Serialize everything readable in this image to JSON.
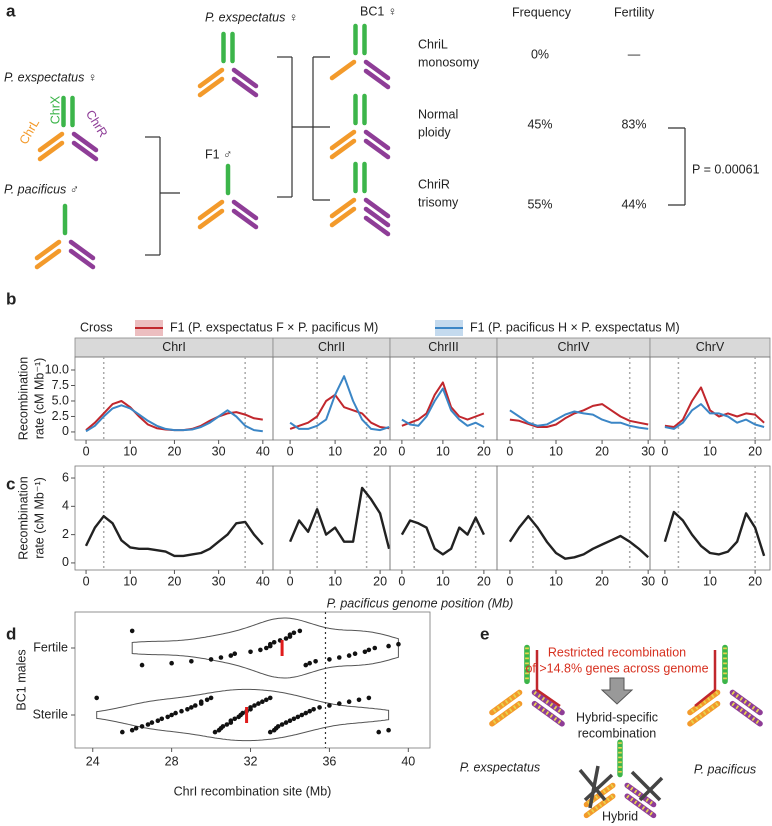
{
  "panel_labels": [
    "a",
    "b",
    "c",
    "d",
    "e"
  ],
  "panel_a": {
    "parent_female": "P. exspectatus ♀",
    "chromosome_labels": [
      "ChrX",
      "ChrL",
      "ChrR"
    ],
    "parent_male": "P. pacificus ♂",
    "backcross_female": "P. exspectatus ♀",
    "f1": "F1 ♂",
    "bc1": "BC1 ♀",
    "column_headers": [
      "Frequency",
      "Fertility"
    ],
    "rows": [
      {
        "karyotype": [
          "ChriL",
          "monosomy"
        ],
        "frequency": "0%",
        "fertility": "—"
      },
      {
        "karyotype": [
          "Normal",
          "ploidy"
        ],
        "frequency": "45%",
        "fertility": "83%"
      },
      {
        "karyotype": [
          "ChriR",
          "trisomy"
        ],
        "frequency": "55%",
        "fertility": "44%"
      }
    ],
    "p_value": "P = 0.00061"
  },
  "chart_data": [
    {
      "type": "line",
      "legend_title": "Cross",
      "series": [
        {
          "name": "F1 (P. exspectatus F × P. pacificus M)",
          "color": "#c1272d"
        },
        {
          "name": "F1 (P. pacificus H × P. exspectatus M)",
          "color": "#3b86c6"
        }
      ],
      "y_label": [
        "Recombination",
        "rate (cM Mb⁻¹)"
      ],
      "ylim": [
        -1.3,
        12.1
      ],
      "yticks": [
        0,
        2.5,
        {
          "value": 5,
          "label": "5.0"
        },
        7.5,
        {
          "value": 10,
          "label": "10.0"
        }
      ],
      "facets": [
        {
          "title": "ChrI",
          "xlim": [
            -2.5,
            42.3
          ],
          "xticks": [
            0,
            10,
            20,
            30,
            40
          ],
          "dotted": [
            4,
            36
          ],
          "x": [
            0,
            2,
            4,
            6,
            8,
            10,
            12,
            14,
            16,
            18,
            20,
            22,
            24,
            26,
            28,
            30,
            32,
            34,
            36,
            38,
            40
          ],
          "series": [
            {
              "values": [
                0.3,
                1.5,
                3,
                4.5,
                5,
                4,
                2.5,
                1.2,
                0.6,
                0.4,
                0.3,
                0.3,
                0.5,
                1,
                1.8,
                2.5,
                3,
                3.2,
                2.8,
                2.2,
                2
              ]
            },
            {
              "values": [
                0.1,
                1,
                2.5,
                3.8,
                4.3,
                3.8,
                2.8,
                1.8,
                1,
                0.5,
                0.3,
                0.3,
                0.4,
                0.8,
                1.5,
                2.5,
                3.5,
                2.5,
                1,
                0.3,
                0.1
              ]
            }
          ]
        },
        {
          "title": "ChrII",
          "xlim": [
            -3.8,
            22.2
          ],
          "xticks": [
            0,
            10,
            20
          ],
          "dotted": [
            6,
            17
          ],
          "x": [
            0,
            2,
            4,
            6,
            8,
            10,
            12,
            14,
            16,
            18,
            20,
            22
          ],
          "series": [
            {
              "values": [
                0.5,
                1,
                1.5,
                2.5,
                5,
                6,
                4,
                3.5,
                3,
                1.5,
                0.8,
                0.6
              ]
            },
            {
              "values": [
                1.5,
                0.5,
                0.5,
                1,
                2,
                6,
                9,
                5,
                2,
                0.5,
                0.3,
                0.8
              ]
            }
          ]
        },
        {
          "title": "ChrIII",
          "xlim": [
            -2.9,
            23.2
          ],
          "xticks": [
            0,
            10,
            20
          ],
          "dotted": [
            3,
            18
          ],
          "x": [
            0,
            2,
            4,
            6,
            8,
            10,
            12,
            14,
            16,
            18,
            20
          ],
          "series": [
            {
              "values": [
                1,
                1.5,
                2,
                3,
                6,
                8,
                4,
                2.5,
                2,
                2.5,
                3
              ]
            },
            {
              "values": [
                2,
                1.2,
                1,
                2.5,
                5,
                7,
                3.5,
                2,
                1,
                1.5,
                0.8
              ]
            }
          ]
        },
        {
          "title": "ChrIV",
          "xlim": [
            -2.8,
            30.4
          ],
          "xticks": [
            0,
            10,
            20,
            30
          ],
          "dotted": [
            5,
            26
          ],
          "x": [
            0,
            2,
            4,
            6,
            8,
            10,
            12,
            14,
            16,
            18,
            20,
            22,
            24,
            26,
            28,
            30
          ],
          "series": [
            {
              "values": [
                2,
                1.8,
                1.3,
                0.8,
                0.8,
                1.2,
                2.2,
                3,
                3.5,
                4.2,
                4.5,
                3.5,
                2.5,
                1.8,
                1.5,
                1.2
              ]
            },
            {
              "values": [
                3.5,
                2.5,
                1.5,
                1,
                1.2,
                2,
                2.8,
                3.3,
                3,
                2.8,
                2,
                1.5,
                1.5,
                1,
                0.7,
                0.5
              ]
            }
          ]
        },
        {
          "title": "ChrV",
          "xlim": [
            -3.3,
            23.3
          ],
          "xticks": [
            0,
            10,
            20
          ],
          "dotted": [
            3,
            20
          ],
          "x": [
            0,
            2,
            4,
            6,
            8,
            10,
            12,
            14,
            16,
            18,
            20,
            22
          ],
          "series": [
            {
              "values": [
                1,
                0.8,
                2,
                5,
                7.2,
                3.5,
                2.5,
                3,
                2.5,
                3,
                2.8,
                1.5
              ]
            },
            {
              "values": [
                0.8,
                0.5,
                1.5,
                3.5,
                4.5,
                3,
                3,
                2.5,
                1.5,
                2,
                1.2,
                0.8
              ]
            }
          ]
        }
      ]
    },
    {
      "type": "line",
      "color": "#222222",
      "y_label": [
        "Recombination",
        "rate (cM Mb⁻¹)"
      ],
      "x_label": "P. pacificus genome position (Mb)",
      "ylim": [
        -0.5,
        6.85
      ],
      "yticks": [
        0,
        2,
        4,
        6
      ],
      "facets": [
        {
          "xlim": [
            -2.5,
            42.3
          ],
          "xticks": [
            0,
            10,
            20,
            30,
            40
          ],
          "dotted": [
            4,
            36
          ],
          "x": [
            0,
            2,
            4,
            6,
            8,
            10,
            12,
            14,
            16,
            18,
            20,
            22,
            24,
            26,
            28,
            30,
            32,
            34,
            36,
            38,
            40
          ],
          "values": [
            1.2,
            2.5,
            3.3,
            2.8,
            1.6,
            1.1,
            1,
            1,
            0.9,
            0.8,
            0.5,
            0.5,
            0.6,
            0.7,
            1,
            1.5,
            2,
            2.8,
            2.9,
            2,
            1.3
          ]
        },
        {
          "xlim": [
            -3.8,
            22.2
          ],
          "xticks": [
            0,
            10,
            20
          ],
          "dotted": [
            6,
            17
          ],
          "x": [
            0,
            2,
            4,
            6,
            8,
            10,
            12,
            14,
            16,
            18,
            20,
            22
          ],
          "values": [
            1.5,
            3,
            2.2,
            3.8,
            2,
            2.5,
            1.5,
            1.5,
            5.3,
            4.5,
            3.5,
            1
          ]
        },
        {
          "xlim": [
            -2.9,
            23.2
          ],
          "xticks": [
            0,
            10,
            20
          ],
          "dotted": [
            3,
            18
          ],
          "x": [
            0,
            2,
            4,
            6,
            8,
            10,
            12,
            14,
            16,
            18,
            20
          ],
          "values": [
            2,
            3,
            2.8,
            2.5,
            1,
            0.6,
            1,
            2.5,
            2,
            3.2,
            2
          ]
        },
        {
          "xlim": [
            -2.8,
            30.4
          ],
          "xticks": [
            0,
            10,
            20,
            30
          ],
          "dotted": [
            5,
            26
          ],
          "x": [
            0,
            2,
            4,
            6,
            8,
            10,
            12,
            14,
            16,
            18,
            20,
            22,
            24,
            26,
            28,
            30
          ],
          "values": [
            1.5,
            2.5,
            3.3,
            2.5,
            1.5,
            0.7,
            0.3,
            0.4,
            0.6,
            1,
            1.3,
            1.6,
            1.9,
            1.5,
            1,
            0.4
          ]
        },
        {
          "xlim": [
            -3.3,
            23.3
          ],
          "xticks": [
            0,
            10,
            20
          ],
          "dotted": [
            3,
            20
          ],
          "x": [
            0,
            2,
            4,
            6,
            8,
            10,
            12,
            14,
            16,
            18,
            20,
            22
          ],
          "values": [
            1.5,
            3.6,
            3,
            2,
            1.2,
            0.7,
            0.6,
            0.8,
            1.5,
            3.5,
            2.5,
            0.5
          ]
        }
      ]
    },
    {
      "type": "violin",
      "categories": [
        "Fertile",
        "Sterile"
      ],
      "y_label": "BC1 males",
      "x_label": "ChrI recombination site (Mb)",
      "xlim": [
        23.1,
        41.1
      ],
      "xticks": [
        24,
        28,
        32,
        36,
        40
      ],
      "vline": 35.8,
      "median_color": "#e01b1b",
      "groups": [
        [
          26,
          26.5,
          28,
          29,
          30,
          30.5,
          31,
          31.2,
          32,
          32.5,
          32.8,
          33,
          33,
          33.2,
          33.5,
          33.8,
          34,
          34,
          34.2,
          34.5,
          34.8,
          35,
          35.3,
          36,
          36.5,
          37,
          37.3,
          37.8,
          38,
          38.3,
          39,
          39.5
        ],
        [
          24.2,
          25.5,
          26,
          26.2,
          26.5,
          26.8,
          27,
          27.3,
          27.5,
          27.8,
          28,
          28.2,
          28.5,
          28.8,
          29,
          29.2,
          29.5,
          29.5,
          29.8,
          30,
          30.2,
          30.4,
          30.5,
          30.6,
          30.8,
          31,
          31,
          31.2,
          31.4,
          31.5,
          31.6,
          31.8,
          32,
          32,
          32.2,
          32.4,
          32.6,
          32.8,
          33,
          33,
          33.2,
          33.3,
          33.4,
          33.6,
          33.8,
          34,
          34.2,
          34.4,
          34.6,
          34.8,
          35,
          35.2,
          35.5,
          36,
          36.5,
          37,
          37.5,
          38,
          38.5,
          39
        ]
      ],
      "medians": [
        33.6,
        31.8
      ]
    }
  ],
  "panel_e": {
    "note": [
      "Restricted recombination",
      "of >14.8% genes across genome"
    ],
    "hybrid_note": [
      "Hybrid-specific",
      "recombination"
    ],
    "labels": [
      "P. exspectatus",
      "P. pacificus",
      "Hybrid"
    ]
  }
}
